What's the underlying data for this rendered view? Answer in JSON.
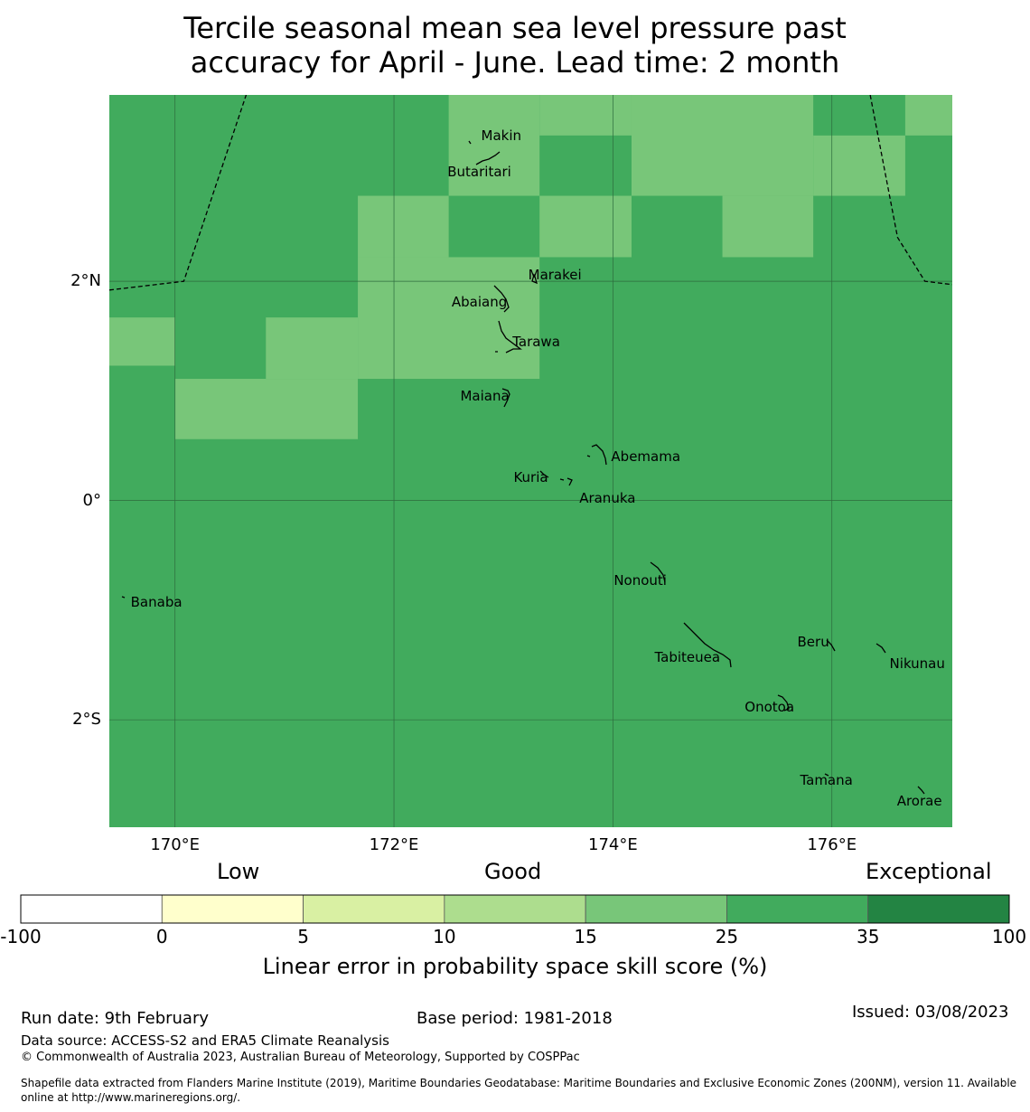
{
  "title": {
    "line1": "Tercile seasonal mean sea level pressure past",
    "line2": "accuracy for April - June. Lead time: 2 month"
  },
  "map": {
    "lon_range": [
      169.4,
      177.1
    ],
    "lat_range": [
      -2.98,
      3.7
    ],
    "grid_cell_deg": [
      0.833,
      0.556
    ],
    "base_class": "25-35",
    "light_class": "15-25",
    "light_cells": [
      [
        169.4,
        170.0,
        1.23,
        1.67
      ],
      [
        170.0,
        171.67,
        0.56,
        1.11
      ],
      [
        170.83,
        171.67,
        1.11,
        1.67
      ],
      [
        171.67,
        173.33,
        1.11,
        2.22
      ],
      [
        171.67,
        172.5,
        2.22,
        2.78
      ],
      [
        172.5,
        173.33,
        2.78,
        3.7
      ],
      [
        173.33,
        174.17,
        2.22,
        2.78
      ],
      [
        173.33,
        174.17,
        3.33,
        3.7
      ],
      [
        174.17,
        175.83,
        2.78,
        3.7
      ],
      [
        175.0,
        175.83,
        2.22,
        2.78
      ],
      [
        175.83,
        176.67,
        2.78,
        3.33
      ],
      [
        176.67,
        177.1,
        3.33,
        3.7
      ]
    ],
    "x_ticks": [
      {
        "lon": 170,
        "label": "170°E"
      },
      {
        "lon": 172,
        "label": "172°E"
      },
      {
        "lon": 174,
        "label": "174°E"
      },
      {
        "lon": 176,
        "label": "176°E"
      }
    ],
    "y_ticks": [
      {
        "lat": 2,
        "label": "2°N"
      },
      {
        "lat": 0,
        "label": "0°"
      },
      {
        "lat": -2,
        "label": "2°S"
      }
    ],
    "eez_boundaries": [
      [
        [
          169.4,
          1.92
        ],
        [
          170.08,
          2.0
        ],
        [
          170.65,
          3.7
        ]
      ],
      [
        [
          176.35,
          3.7
        ],
        [
          176.6,
          2.4
        ],
        [
          176.85,
          2.0
        ],
        [
          177.1,
          1.97
        ]
      ]
    ],
    "islands": [
      {
        "name": "Makin",
        "lon": 172.98,
        "lat": 3.33
      },
      {
        "name": "Butaritari",
        "lon": 172.78,
        "lat": 3.0
      },
      {
        "name": "Marakei",
        "lon": 173.47,
        "lat": 2.06
      },
      {
        "name": "Abaiang",
        "lon": 172.78,
        "lat": 1.81
      },
      {
        "name": "Tarawa",
        "lon": 173.3,
        "lat": 1.45
      },
      {
        "name": "Maiana",
        "lon": 172.83,
        "lat": 0.95
      },
      {
        "name": "Abemama",
        "lon": 174.3,
        "lat": 0.4
      },
      {
        "name": "Kuria",
        "lon": 173.25,
        "lat": 0.21
      },
      {
        "name": "Aranuka",
        "lon": 173.95,
        "lat": 0.02
      },
      {
        "name": "Nonouti",
        "lon": 174.25,
        "lat": -0.73
      },
      {
        "name": "Banaba",
        "lon": 169.83,
        "lat": -0.93
      },
      {
        "name": "Beru",
        "lon": 175.83,
        "lat": -1.29
      },
      {
        "name": "Tabiteuea",
        "lon": 174.68,
        "lat": -1.43
      },
      {
        "name": "Nikunau",
        "lon": 176.78,
        "lat": -1.49
      },
      {
        "name": "Onotoa",
        "lon": 175.43,
        "lat": -1.88
      },
      {
        "name": "Tamana",
        "lon": 175.95,
        "lat": -2.55
      },
      {
        "name": "Arorae",
        "lon": 176.8,
        "lat": -2.74
      }
    ]
  },
  "colorbar": {
    "category_labels": [
      "Low",
      "Good",
      "Exceptional"
    ],
    "boundaries": [
      "-100",
      "0",
      "5",
      "10",
      "15",
      "25",
      "35",
      "100"
    ],
    "colors": [
      "#ffffff",
      "#ffffcc",
      "#d9f0a3",
      "#addd8e",
      "#78c679",
      "#41ab5d",
      "#238443"
    ],
    "title": "Linear error in probability space skill score (%)"
  },
  "footer": {
    "run_date": "Run date: 9th February",
    "base_period": "Base period: 1981-2018",
    "issued": "Issued: 03/08/2023",
    "data_source": "Data source: ACCESS-S2 and ERA5 Climate Reanalysis",
    "copyright": "© Commonwealth of Australia 2023, Australian Bureau of Meteorology, Supported by COSPPac",
    "shapefile_line1": "Shapefile data extracted from Flanders Marine Institute (2019), Maritime Boundaries Geodatabase: Maritime Boundaries and Exclusive Economic Zones (200NM), version 11. Available",
    "shapefile_line2": "online at http://www.marineregions.org/."
  }
}
